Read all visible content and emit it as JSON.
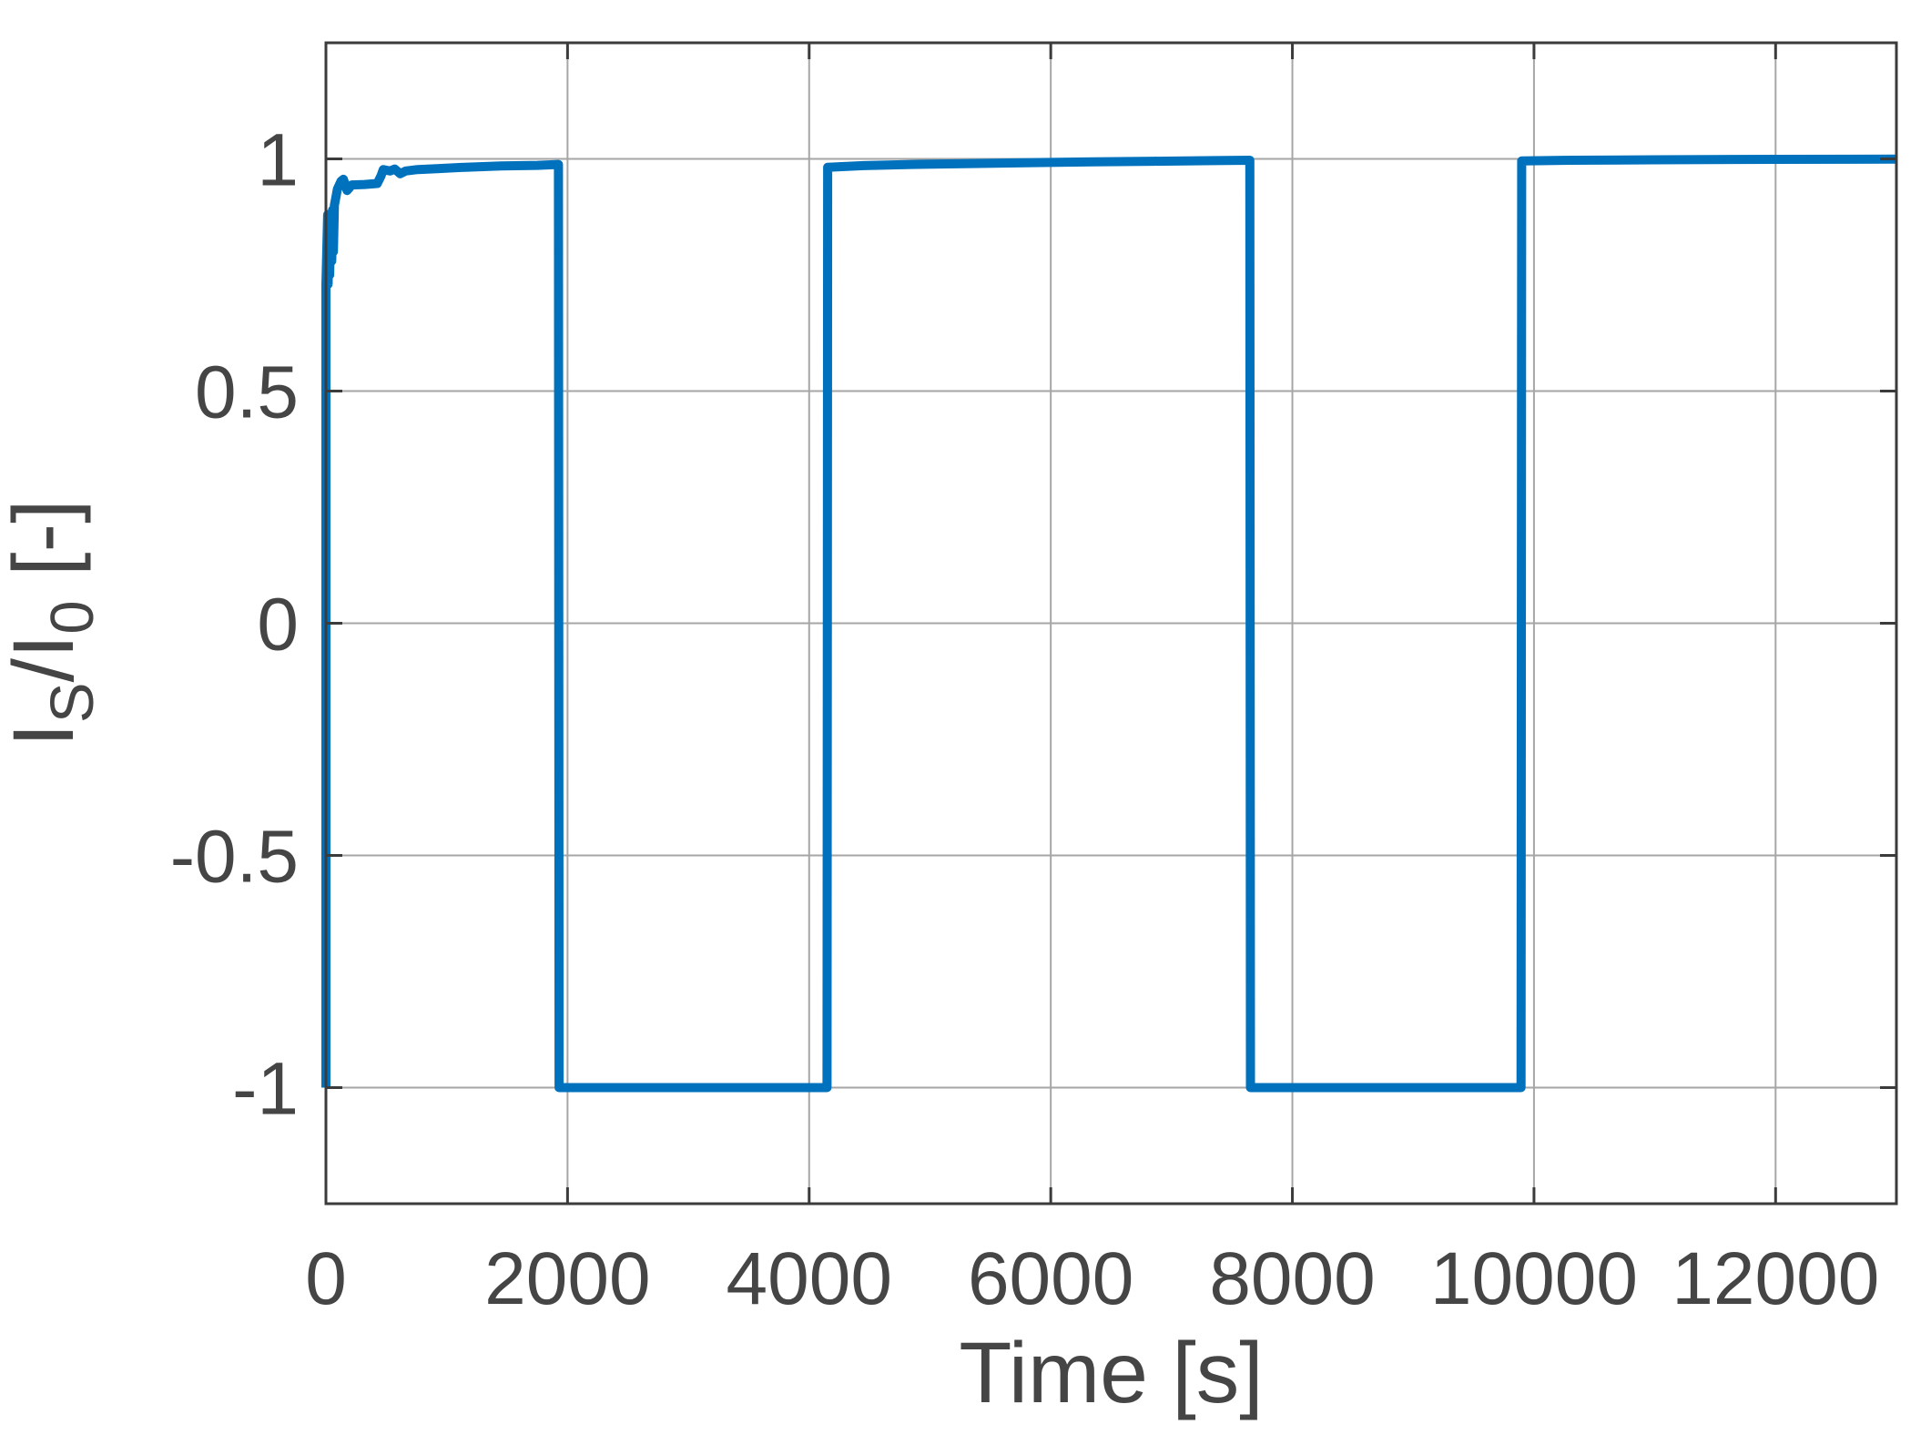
{
  "page": {
    "background": "#ffffff"
  },
  "chart_data": {
    "type": "line",
    "title": "",
    "xlabel": "Time [s]",
    "ylabel": "I_S/I_0 [-]",
    "ylabel_rich": [
      {
        "text": "I",
        "sub": false
      },
      {
        "text": "S",
        "sub": true
      },
      {
        "text": "/I",
        "sub": false
      },
      {
        "text": "0",
        "sub": true
      },
      {
        "text": " [-]",
        "sub": false
      }
    ],
    "xlim": [
      0,
      13000
    ],
    "ylim": [
      -1.25,
      1.25
    ],
    "xticks": [
      0,
      2000,
      4000,
      6000,
      8000,
      10000,
      12000
    ],
    "xtick_labels": [
      "0",
      "2000",
      "4000",
      "6000",
      "8000",
      "10000",
      "12000"
    ],
    "yticks": [
      -1,
      -0.5,
      0,
      0.5,
      1
    ],
    "ytick_labels": [
      "-1",
      "-0.5",
      "0",
      "0.5",
      "1"
    ],
    "grid": true,
    "box": true,
    "legend": null,
    "colors": {
      "line": "#0072BD",
      "grid": "#a6a6a6",
      "axis": "#3b3b3b",
      "tick_label": "#454545"
    },
    "series": [
      {
        "name": "IS/I0",
        "points": [
          [
            0,
            -1.0
          ],
          [
            0,
            0.73
          ],
          [
            14,
            0.88
          ],
          [
            18,
            0.73
          ],
          [
            26,
            0.87
          ],
          [
            31,
            0.75
          ],
          [
            40,
            0.88
          ],
          [
            48,
            0.78
          ],
          [
            55,
            0.89
          ],
          [
            62,
            0.8
          ],
          [
            70,
            0.9
          ],
          [
            95,
            0.935
          ],
          [
            125,
            0.952
          ],
          [
            145,
            0.956
          ],
          [
            175,
            0.932
          ],
          [
            215,
            0.944
          ],
          [
            320,
            0.945
          ],
          [
            425,
            0.947
          ],
          [
            455,
            0.963
          ],
          [
            475,
            0.977
          ],
          [
            530,
            0.974
          ],
          [
            570,
            0.978
          ],
          [
            615,
            0.968
          ],
          [
            660,
            0.974
          ],
          [
            760,
            0.977
          ],
          [
            920,
            0.979
          ],
          [
            1150,
            0.982
          ],
          [
            1450,
            0.985
          ],
          [
            1750,
            0.986
          ],
          [
            1925,
            0.988
          ],
          [
            1930,
            -1.0
          ],
          [
            4148,
            -1.0
          ],
          [
            4153,
            0.982
          ],
          [
            4450,
            0.9855
          ],
          [
            4850,
            0.988
          ],
          [
            5350,
            0.99
          ],
          [
            5850,
            0.992
          ],
          [
            6350,
            0.9938
          ],
          [
            6850,
            0.995
          ],
          [
            7350,
            0.9962
          ],
          [
            7648,
            0.997
          ],
          [
            7653,
            -1.0
          ],
          [
            9893,
            -1.0
          ],
          [
            9898,
            0.9955
          ],
          [
            10300,
            0.997
          ],
          [
            11000,
            0.998
          ],
          [
            12000,
            0.999
          ],
          [
            13000,
            0.9995
          ]
        ]
      }
    ]
  }
}
